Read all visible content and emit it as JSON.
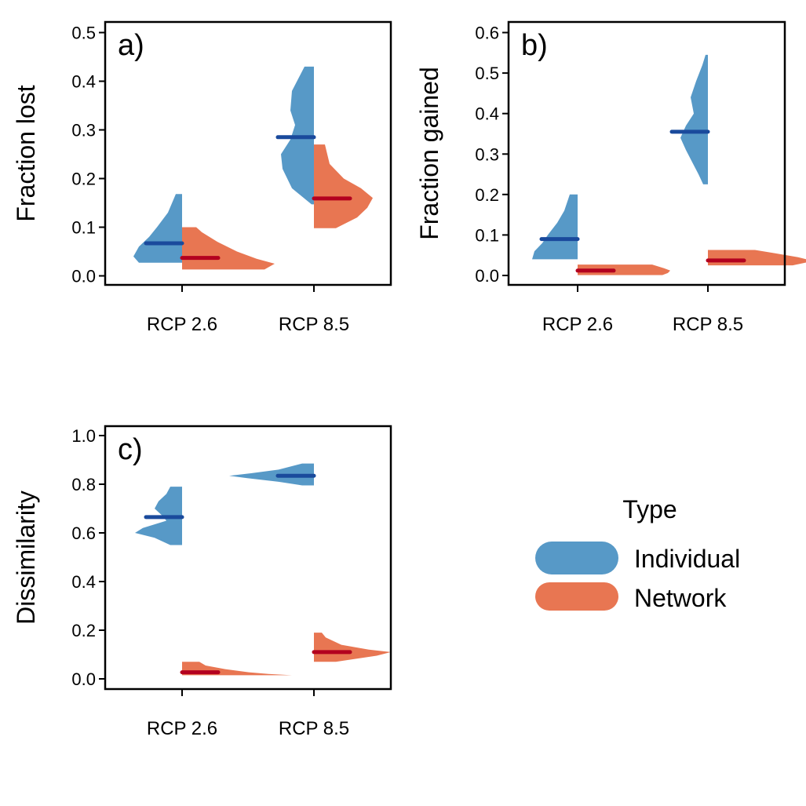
{
  "chart_data": [
    {
      "type": "split-violin",
      "panel_label": "a)",
      "ylabel": "Fraction lost",
      "categories": [
        "RCP 2.6",
        "RCP 8.5"
      ],
      "ylim": [
        0,
        0.5
      ],
      "yticks": [
        "0.0",
        "0.1",
        "0.2",
        "0.3",
        "0.4",
        "0.5"
      ],
      "series": [
        {
          "name": "Individual",
          "side": "left",
          "medians": [
            0.067,
            0.285
          ],
          "ranges": [
            [
              0.027,
              0.168
            ],
            [
              0.147,
              0.43
            ]
          ]
        },
        {
          "name": "Network",
          "side": "right",
          "medians": [
            0.037,
            0.159
          ],
          "ranges": [
            [
              0.013,
              0.1
            ],
            [
              0.098,
              0.27
            ]
          ]
        }
      ]
    },
    {
      "type": "split-violin",
      "panel_label": "b)",
      "ylabel": "Fraction gained",
      "categories": [
        "RCP 2.6",
        "RCP 8.5"
      ],
      "ylim": [
        0,
        0.6
      ],
      "yticks": [
        "0.0",
        "0.1",
        "0.2",
        "0.3",
        "0.4",
        "0.5",
        "0.6"
      ],
      "series": [
        {
          "name": "Individual",
          "side": "left",
          "medians": [
            0.09,
            0.355
          ],
          "ranges": [
            [
              0.04,
              0.2
            ],
            [
              0.225,
              0.545
            ]
          ]
        },
        {
          "name": "Network",
          "side": "right",
          "medians": [
            0.012,
            0.037
          ],
          "ranges": [
            [
              0.001,
              0.027
            ],
            [
              0.025,
              0.063
            ]
          ]
        }
      ]
    },
    {
      "type": "split-violin",
      "panel_label": "c)",
      "ylabel": "Dissimilarity",
      "categories": [
        "RCP 2.6",
        "RCP 8.5"
      ],
      "ylim": [
        0,
        1.0
      ],
      "yticks": [
        "0.0",
        "0.2",
        "0.4",
        "0.6",
        "0.8",
        "1.0"
      ],
      "series": [
        {
          "name": "Individual",
          "side": "left",
          "medians": [
            0.665,
            0.835
          ],
          "ranges": [
            [
              0.55,
              0.79
            ],
            [
              0.795,
              0.885
            ]
          ]
        },
        {
          "name": "Network",
          "side": "right",
          "medians": [
            0.027,
            0.11
          ],
          "ranges": [
            [
              0.015,
              0.07
            ],
            [
              0.07,
              0.19
            ]
          ]
        }
      ]
    }
  ],
  "legend": {
    "title": "Type",
    "items": [
      {
        "label": "Individual",
        "color": "#5799C7"
      },
      {
        "label": "Network",
        "color": "#E87652"
      }
    ]
  },
  "colors": {
    "individual_fill": "#5799C7",
    "network_fill": "#E87652",
    "individual_median": "#1A4A9C",
    "network_median": "#B3001F"
  }
}
